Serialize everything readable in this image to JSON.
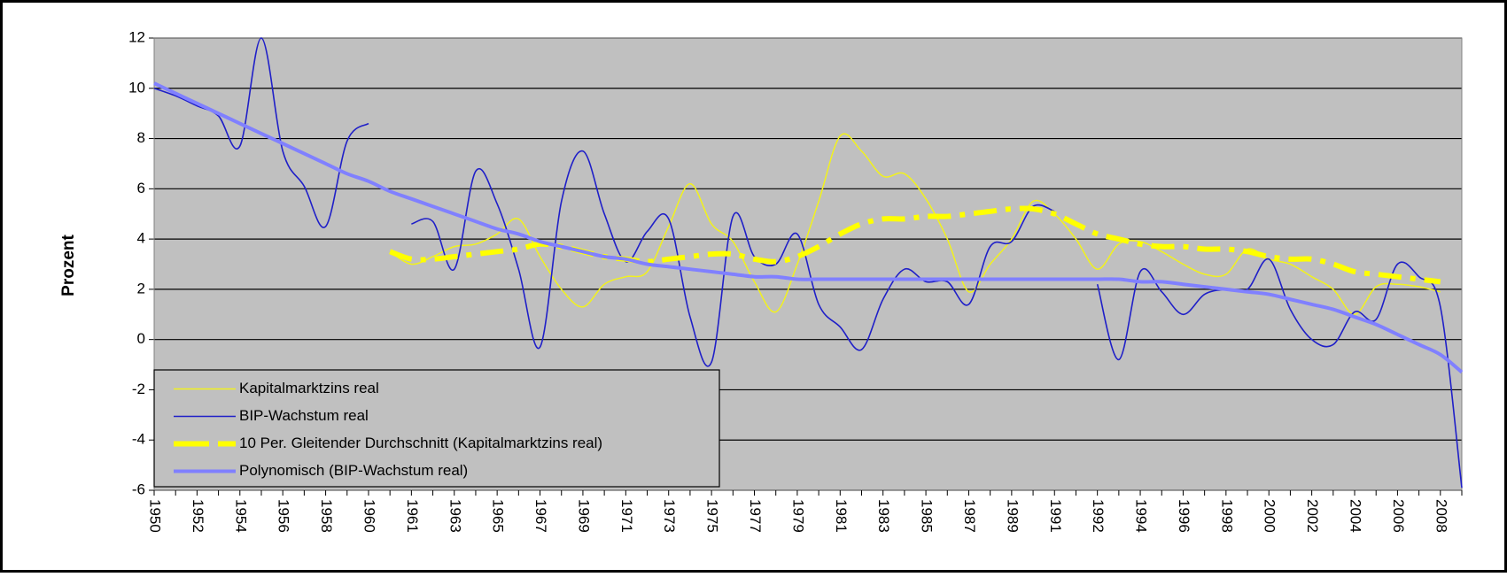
{
  "chart_data": {
    "type": "line",
    "y_label": "Prozent",
    "categories": [
      "1950",
      null,
      "1952",
      null,
      "1954",
      null,
      "1956",
      null,
      "1958",
      null,
      "1960",
      null,
      "1961",
      null,
      "1963",
      null,
      "1965",
      null,
      "1967",
      null,
      "1969",
      null,
      "1971",
      null,
      "1973",
      null,
      "1975",
      null,
      "1977",
      null,
      "1979",
      null,
      "1981",
      null,
      "1983",
      null,
      "1985",
      null,
      "1987",
      null,
      "1989",
      null,
      "1991",
      null,
      "1992",
      null,
      "1994",
      null,
      "1996",
      null,
      "1998",
      null,
      "2000",
      null,
      "2002",
      null,
      "2004",
      null,
      "2006",
      null,
      "2008",
      null
    ],
    "series": [
      {
        "name": "Kapitalmarktzins real",
        "color": "#f2f21c",
        "values": [
          null,
          null,
          null,
          null,
          null,
          null,
          null,
          null,
          null,
          null,
          null,
          3.5,
          3.0,
          3.3,
          3.7,
          3.8,
          4.2,
          4.8,
          3.3,
          2.0,
          1.3,
          2.2,
          2.5,
          2.7,
          4.5,
          6.2,
          4.6,
          3.9,
          2.3,
          1.1,
          3.0,
          5.5,
          8.1,
          7.5,
          6.5,
          6.6,
          5.6,
          4.0,
          1.9,
          3.0,
          4.0,
          5.5,
          5.0,
          4.0,
          2.8,
          3.8,
          3.9,
          3.5,
          3.0,
          2.6,
          2.6,
          3.6,
          3.2,
          3.0,
          2.5,
          2.0,
          1.0,
          2.1,
          2.2,
          2.1,
          1.9,
          null
        ]
      },
      {
        "name": "BIP-Wachstum real",
        "color": "#1f1fc8",
        "values": [
          10.0,
          9.7,
          9.3,
          8.9,
          7.7,
          12.0,
          7.5,
          6.1,
          4.5,
          7.9,
          8.6,
          null,
          4.6,
          4.7,
          2.8,
          6.7,
          5.4,
          2.8,
          -0.3,
          5.5,
          7.5,
          5.0,
          3.1,
          4.3,
          4.8,
          0.9,
          -0.9,
          4.9,
          3.3,
          3.0,
          4.2,
          1.4,
          0.5,
          -0.4,
          1.6,
          2.8,
          2.3,
          2.3,
          1.4,
          3.7,
          3.9,
          5.3,
          5.1,
          null,
          2.2,
          -0.8,
          2.7,
          1.9,
          1.0,
          1.8,
          2.0,
          2.0,
          3.2,
          1.2,
          0.0,
          -0.2,
          1.1,
          0.8,
          3.0,
          2.5,
          1.3,
          -5.9
        ]
      },
      {
        "name": "10 Per. Gleitender Durchschnitt (Kapitalmarktzins real)",
        "color": "#ffff00",
        "dashed": true,
        "values": [
          null,
          null,
          null,
          null,
          null,
          null,
          null,
          null,
          null,
          null,
          null,
          3.5,
          3.2,
          3.2,
          3.3,
          3.4,
          3.5,
          3.6,
          3.8,
          3.7,
          3.5,
          3.3,
          3.2,
          3.1,
          3.2,
          3.3,
          3.4,
          3.4,
          3.2,
          3.1,
          3.3,
          3.7,
          4.2,
          4.6,
          4.8,
          4.8,
          4.9,
          4.9,
          5.0,
          5.1,
          5.2,
          5.2,
          5.0,
          4.6,
          4.2,
          4.0,
          3.8,
          3.7,
          3.7,
          3.6,
          3.6,
          3.5,
          3.3,
          3.2,
          3.2,
          3.0,
          2.7,
          2.6,
          2.5,
          2.4,
          2.3,
          null
        ]
      },
      {
        "name": "Polynomisch (BIP-Wachstum real)",
        "color": "#8080ff",
        "values": [
          10.2,
          9.8,
          9.4,
          9.0,
          8.6,
          8.2,
          7.8,
          7.4,
          7.0,
          6.6,
          6.3,
          5.9,
          5.6,
          5.3,
          5.0,
          4.7,
          4.4,
          4.2,
          3.9,
          3.7,
          3.5,
          3.3,
          3.2,
          3.0,
          2.9,
          2.8,
          2.7,
          2.6,
          2.5,
          2.5,
          2.4,
          2.4,
          2.4,
          2.4,
          2.4,
          2.4,
          2.4,
          2.4,
          2.4,
          2.4,
          2.4,
          2.4,
          2.4,
          2.4,
          2.4,
          2.4,
          2.3,
          2.3,
          2.2,
          2.1,
          2.0,
          1.9,
          1.8,
          1.6,
          1.4,
          1.2,
          0.9,
          0.6,
          0.2,
          -0.2,
          -0.6,
          -1.3
        ]
      }
    ],
    "ylim": [
      -6,
      12
    ],
    "yticks": [
      -6,
      -4,
      -2,
      0,
      2,
      4,
      6,
      8,
      10,
      12
    ],
    "grid": true,
    "background": "#c0c0c0",
    "legend": "lower-left"
  }
}
